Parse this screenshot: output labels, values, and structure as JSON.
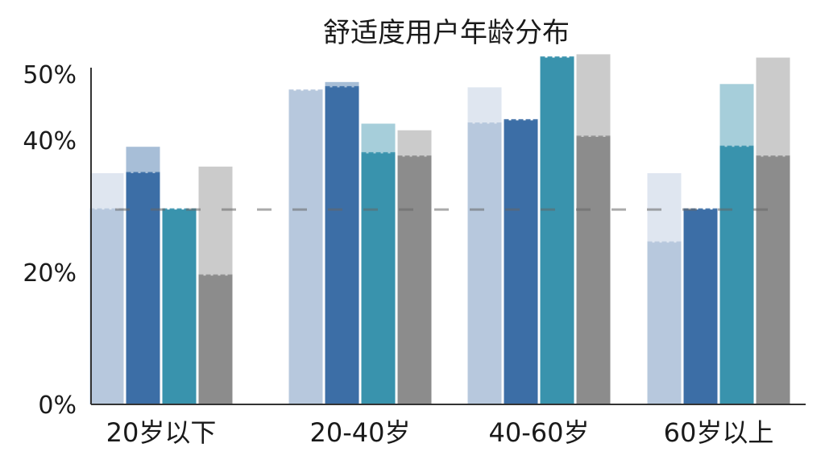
{
  "chart_data": {
    "type": "bar",
    "title": "舒适度用户年龄分布",
    "xlabel": "",
    "ylabel": "",
    "categories": [
      "20岁以下",
      "20-40岁",
      "40-60岁",
      "60岁以上"
    ],
    "y_ticks": [
      {
        "value": 0,
        "label": "0%"
      },
      {
        "value": 20,
        "label": "20%"
      },
      {
        "value": 40,
        "label": "40%"
      },
      {
        "value": 50,
        "label": "50%"
      }
    ],
    "ylim": [
      0,
      50
    ],
    "grid": false,
    "legend": "none",
    "series": [
      {
        "color": "#b7c8dd",
        "values": [
          29.5,
          47.5,
          42.5,
          24.5
        ],
        "stack_top": [
          35,
          47.5,
          48,
          35
        ]
      },
      {
        "color": "#3c6ea6",
        "values": [
          35,
          48,
          43,
          29.5
        ],
        "stack_top": [
          39,
          48.8,
          42.5,
          29.5
        ]
      },
      {
        "color": "#3993ad",
        "values": [
          29.5,
          38,
          52.5,
          39
        ],
        "stack_top": [
          29.5,
          42.5,
          52.5,
          48.5
        ]
      },
      {
        "color": "#8c8c8c",
        "values": [
          19.5,
          37.5,
          40.5,
          37.5
        ],
        "stack_top": [
          36,
          41.5,
          53,
          52.5
        ]
      }
    ],
    "colors": {
      "axis": "#333333",
      "dashed_line": "#666666"
    }
  }
}
